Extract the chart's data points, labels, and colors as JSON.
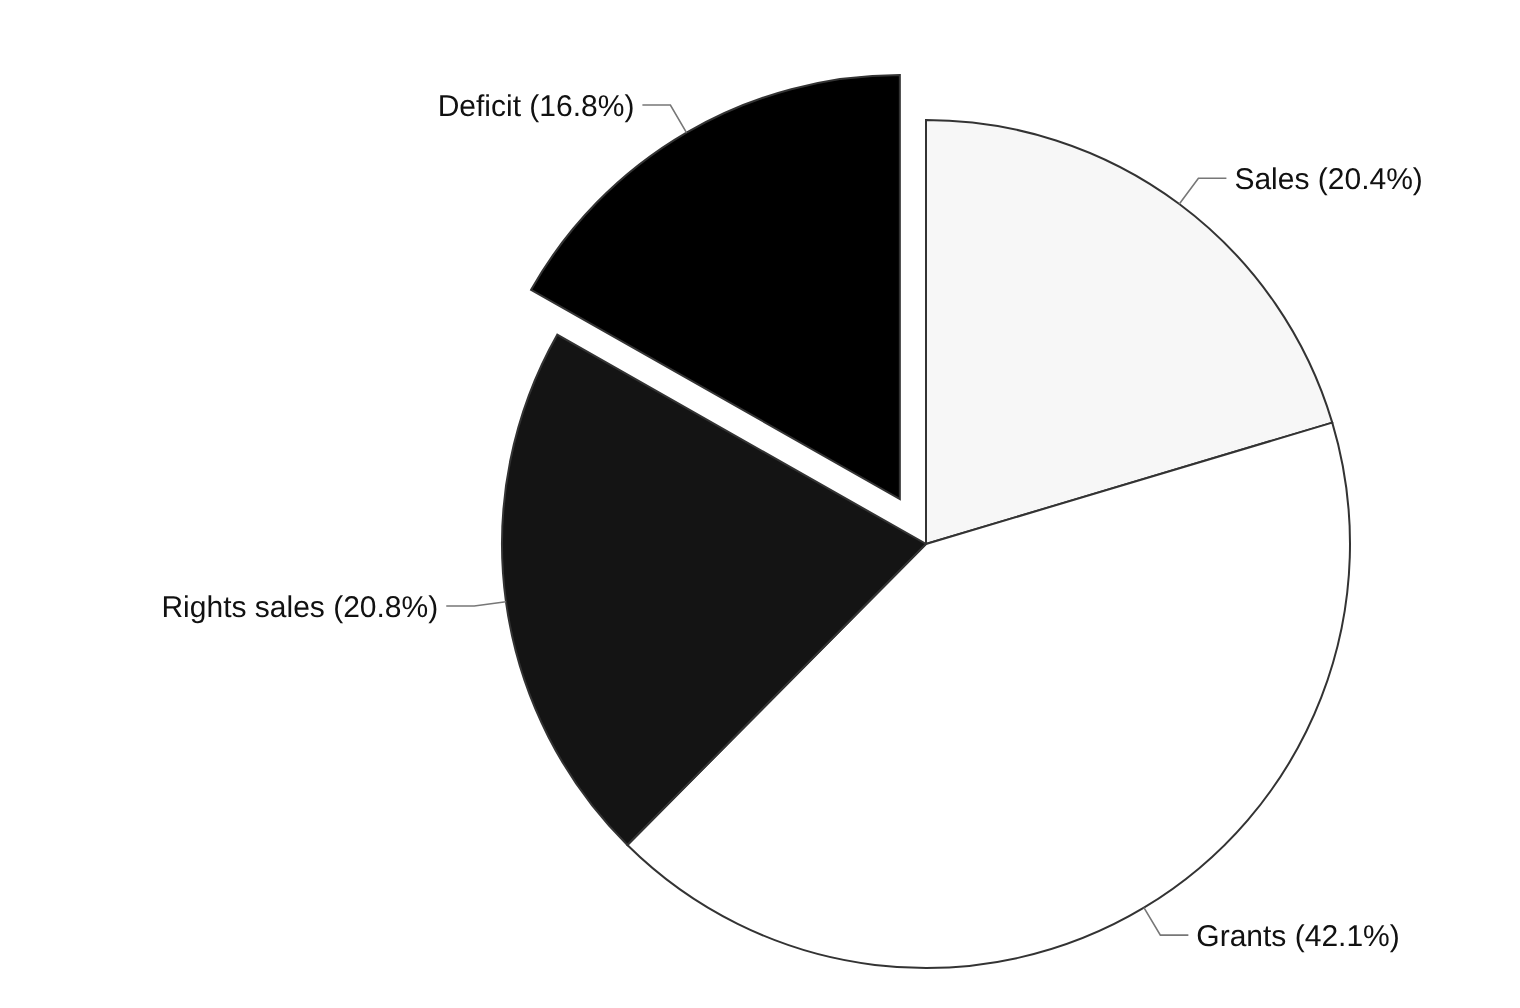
{
  "chart_data": {
    "type": "pie",
    "categories": [
      "Sales",
      "Grants",
      "Rights sales",
      "Deficit"
    ],
    "values": [
      20.4,
      42.1,
      20.8,
      16.8
    ],
    "value_labels": [
      "(20.4%)",
      "(42.1%)",
      "(20.8%)",
      "(16.8%)"
    ],
    "colors": [
      "#f7f7f7",
      "#ffffff",
      "#141414",
      "#000000"
    ]
  }
}
